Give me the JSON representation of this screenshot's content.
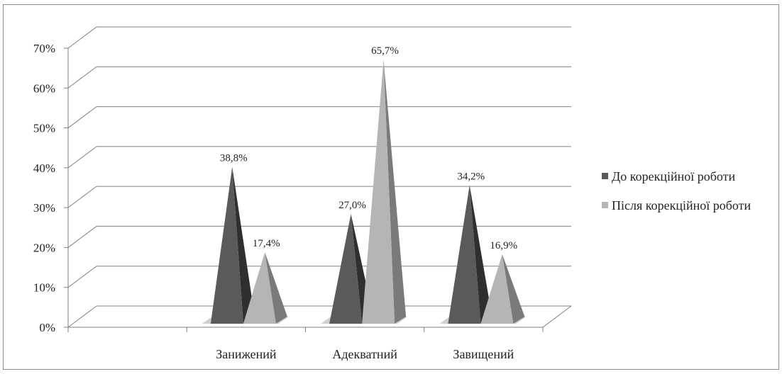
{
  "chart_data": {
    "type": "bar",
    "style": "3d-pyramid",
    "categories": [
      "",
      "Занижений",
      "Адекватний",
      "Завищений"
    ],
    "series": [
      {
        "name": "До корекційної роботи",
        "values": [
          null,
          38.8,
          27.0,
          34.2
        ],
        "labels": [
          "",
          "38,8%",
          "27,0%",
          "34,2%"
        ],
        "color": "#6b6b6b"
      },
      {
        "name": "Після корекційної роботи",
        "values": [
          null,
          17.4,
          65.7,
          16.9
        ],
        "labels": [
          "",
          "17,4%",
          "65,7%",
          "16,9%"
        ],
        "color": "#b3b3b3"
      }
    ],
    "y_ticks": [
      "0%",
      "10%",
      "20%",
      "30%",
      "40%",
      "50%",
      "60%",
      "70%"
    ],
    "ylim": [
      0,
      70
    ],
    "grid": true,
    "legend_position": "right"
  }
}
